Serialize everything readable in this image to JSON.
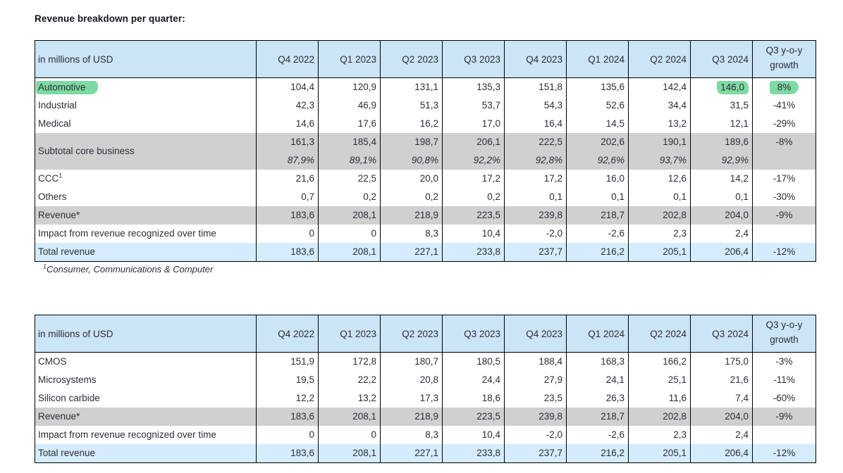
{
  "page_title": "Revenue breakdown per quarter:",
  "footnote": {
    "sup": "1",
    "text": "Consumer, Communications & Computer"
  },
  "colors": {
    "header_blue": "#cbe4f6",
    "total_row_blue": "#d4ecfb",
    "subtotal_gray": "#d1d0d1",
    "highlight_green": "#7ddaa3",
    "border": "#000000",
    "text": "#2d2d38"
  },
  "quarter_columns": [
    "Q4 2022",
    "Q1 2023",
    "Q2 2023",
    "Q3 2023",
    "Q4 2023",
    "Q1 2024",
    "Q2 2024",
    "Q3 2024"
  ],
  "growth_column": {
    "line1": "Q3 y-o-y",
    "line2": "growth"
  },
  "tables": [
    {
      "name": "revenue-by-segment",
      "unit_label": "in millions of USD",
      "rows": [
        {
          "label": "Automotive",
          "style": "white",
          "values": [
            "104,4",
            "120,9",
            "131,1",
            "135,3",
            "151,8",
            "135,6",
            "142,4",
            "146,0"
          ],
          "growth": "8%",
          "highlight": {
            "label": true,
            "value_index": 7,
            "growth": true
          }
        },
        {
          "label": "Industrial",
          "style": "white",
          "values": [
            "42,3",
            "46,9",
            "51,3",
            "53,7",
            "54,3",
            "52,6",
            "34,4",
            "31,5"
          ],
          "growth": "-41%"
        },
        {
          "label": "Medical",
          "style": "white",
          "values": [
            "14,6",
            "17,6",
            "16,2",
            "17,0",
            "16,4",
            "14,5",
            "13,2",
            "12,1"
          ],
          "growth": "-29%"
        },
        {
          "label": "Subtotal core business",
          "style": "gray",
          "values": [
            "161,3",
            "185,4",
            "198,7",
            "206,1",
            "222,5",
            "202,6",
            "190,1",
            "189,6"
          ],
          "growth": "-8%",
          "pct_values": [
            "87,9%",
            "89,1%",
            "90,8%",
            "92,2%",
            "92,8%",
            "92,6%",
            "93,7%",
            "92,9%"
          ]
        },
        {
          "label": "CCC",
          "sup": "1",
          "style": "white",
          "values": [
            "21,6",
            "22,5",
            "20,0",
            "17,2",
            "17,2",
            "16,0",
            "12,6",
            "14,2"
          ],
          "growth": "-17%"
        },
        {
          "label": "Others",
          "style": "white",
          "values": [
            "0,7",
            "0,2",
            "0,2",
            "0,2",
            "0,1",
            "0,1",
            "0,1",
            "0,1"
          ],
          "growth": "-30%"
        },
        {
          "label": "Revenue*",
          "style": "gray",
          "values": [
            "183,6",
            "208,1",
            "218,9",
            "223,5",
            "239,8",
            "218,7",
            "202,8",
            "204,0"
          ],
          "growth": "-9%"
        },
        {
          "label": "Impact from revenue recognized over time",
          "style": "white",
          "values": [
            "0",
            "0",
            "8,3",
            "10,4",
            "-2,0",
            "-2,6",
            "2,3",
            "2,4"
          ],
          "growth": ""
        },
        {
          "label": "Total revenue",
          "style": "blue",
          "values": [
            "183,6",
            "208,1",
            "227,1",
            "233,8",
            "237,7",
            "216,2",
            "205,1",
            "206,4"
          ],
          "growth": "-12%"
        }
      ]
    },
    {
      "name": "revenue-by-technology",
      "unit_label": "in millions of USD",
      "rows": [
        {
          "label": "CMOS",
          "style": "white",
          "values": [
            "151,9",
            "172,8",
            "180,7",
            "180,5",
            "188,4",
            "168,3",
            "166,2",
            "175,0"
          ],
          "growth": "-3%"
        },
        {
          "label": "Microsystems",
          "style": "white",
          "values": [
            "19,5",
            "22,2",
            "20,8",
            "24,4",
            "27,9",
            "24,1",
            "25,1",
            "21,6"
          ],
          "growth": "-11%"
        },
        {
          "label": "Silicon carbide",
          "style": "white",
          "values": [
            "12,2",
            "13,2",
            "17,3",
            "18,6",
            "23,5",
            "26,3",
            "11,6",
            "7,4"
          ],
          "growth": "-60%"
        },
        {
          "label": "Revenue*",
          "style": "gray",
          "values": [
            "183,6",
            "208,1",
            "218,9",
            "223,5",
            "239,8",
            "218,7",
            "202,8",
            "204,0"
          ],
          "growth": "-9%"
        },
        {
          "label": "Impact from revenue recognized over time",
          "style": "white",
          "values": [
            "0",
            "0",
            "8,3",
            "10,4",
            "-2,0",
            "-2,6",
            "2,3",
            "2,4"
          ],
          "growth": ""
        },
        {
          "label": "Total revenue",
          "style": "blue",
          "values": [
            "183,6",
            "208,1",
            "227,1",
            "233,8",
            "237,7",
            "216,2",
            "205,1",
            "206,4"
          ],
          "growth": "-12%"
        }
      ]
    }
  ]
}
